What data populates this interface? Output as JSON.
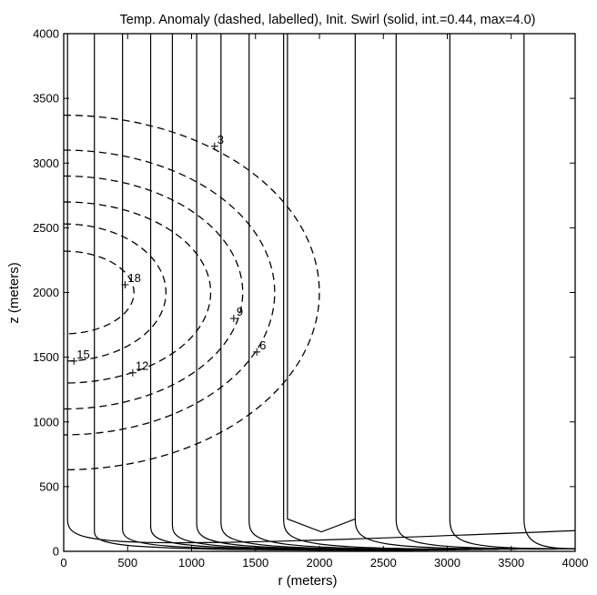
{
  "chart_data": {
    "type": "contour",
    "title": "Temp. Anomaly (dashed, labelled), Init. Swirl (solid, int.=0.44, max=4.0)",
    "xlabel": "r (meters)",
    "ylabel": "z (meters)",
    "xlim": [
      0,
      4000
    ],
    "ylim": [
      0,
      4000
    ],
    "x_ticks": [
      0,
      500,
      1000,
      1500,
      2000,
      2500,
      3000,
      3500,
      4000
    ],
    "y_ticks": [
      0,
      500,
      1000,
      1500,
      2000,
      2500,
      3000,
      3500,
      4000
    ],
    "grid": false,
    "temperature_anomaly": {
      "style": "dashed",
      "center": {
        "r": 0,
        "z": 2000
      },
      "contours": [
        {
          "r_extent": 2000,
          "z_top": 3370,
          "z_bottom": 630
        },
        {
          "r_extent": 1650,
          "z_top": 3100,
          "z_bottom": 900
        },
        {
          "r_extent": 1400,
          "z_top": 2900,
          "z_bottom": 1100
        },
        {
          "r_extent": 1150,
          "z_top": 2700,
          "z_bottom": 1300
        },
        {
          "r_extent": 800,
          "z_top": 2530,
          "z_bottom": 1470
        },
        {
          "r_extent": 550,
          "z_top": 2320,
          "z_bottom": 1680
        }
      ],
      "labels": [
        {
          "text": "3",
          "r": 1180,
          "z": 3130
        },
        {
          "text": "18",
          "r": 480,
          "z": 2060
        },
        {
          "text": "9",
          "r": 1330,
          "z": 1800
        },
        {
          "text": "6",
          "r": 1510,
          "z": 1540
        },
        {
          "text": "15",
          "r": 80,
          "z": 1470
        },
        {
          "text": "12",
          "r": 540,
          "z": 1380
        }
      ]
    },
    "initial_swirl": {
      "style": "solid",
      "interval": 0.44,
      "max": 4.0,
      "contour_r": [
        240,
        460,
        680,
        850,
        1040,
        1230,
        1450,
        1720,
        2280,
        2600,
        3020,
        3600
      ],
      "cap_z": [
        160,
        180,
        200,
        210,
        220,
        230,
        240,
        250,
        250,
        250,
        250,
        250
      ],
      "v_shape": {
        "r_left": 1750,
        "r_right": 2280,
        "z_tip": 150,
        "z_shoulder": 250
      }
    }
  }
}
